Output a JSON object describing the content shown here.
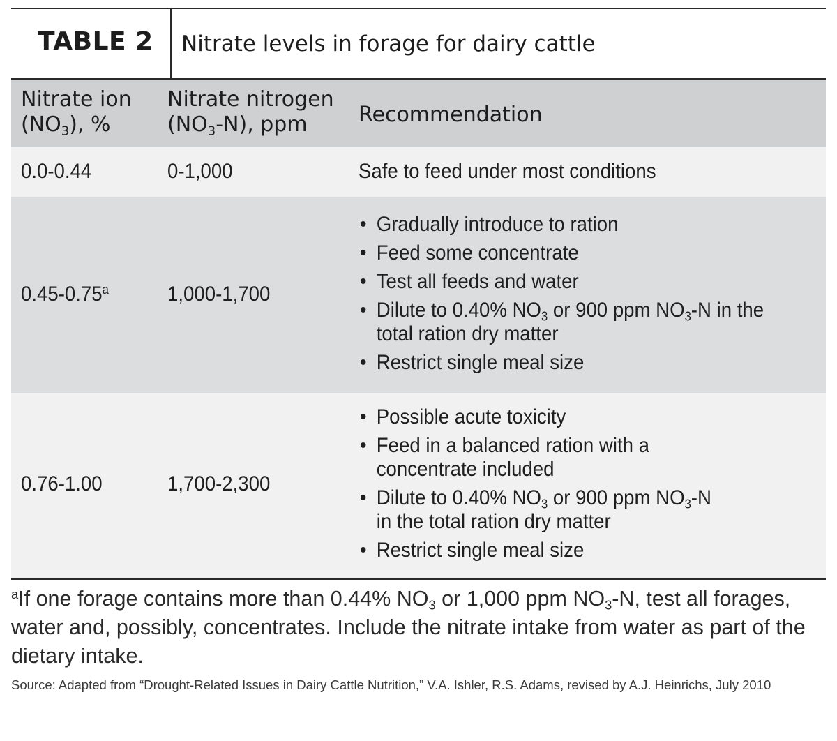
{
  "title": {
    "label": "TABLE 2",
    "text": "Nitrate levels in forage for dairy cattle"
  },
  "header": {
    "col1_line1": "Nitrate ion",
    "col1_line2_a": "(NO",
    "col1_line2_sub": "3",
    "col1_line2_b": "), %",
    "col2_line1": "Nitrate nitrogen",
    "col2_line2_a": "(NO",
    "col2_line2_sub": "3",
    "col2_line2_b": "-N), ppm",
    "col3": "Recommendation"
  },
  "rows": [
    {
      "nitrate_ion": "0.0-0.44",
      "nitrate_nitrogen": "0-1,000",
      "recommendation": "Safe to feed under most conditions"
    },
    {
      "nitrate_ion": "0.45-0.75",
      "nitrate_ion_sup": "a",
      "nitrate_nitrogen": "1,000-1,700",
      "b1": "Gradually introduce to ration",
      "b2": "Feed some concentrate",
      "b3": "Test all feeds and water",
      "b4_a": "Dilute to 0.40% NO",
      "b4_sub1": "3",
      "b4_b": " or 900 ppm NO",
      "b4_sub2": "3",
      "b4_c": "-N in the",
      "b4_d": "total ration dry matter",
      "b5": "Restrict single meal size"
    },
    {
      "nitrate_ion": "0.76-1.00",
      "nitrate_nitrogen": "1,700-2,300",
      "b1": "Possible acute toxicity",
      "b2_a": "Feed in a balanced ration with a",
      "b2_b": "concentrate included",
      "b3_a": "Dilute to 0.40% NO",
      "b3_sub1": "3",
      "b3_b": " or 900 ppm NO",
      "b3_sub2": "3",
      "b3_c": "-N",
      "b3_d": "in the total ration dry matter",
      "b4": "Restrict single meal size"
    }
  ],
  "footnote": {
    "marker": "a",
    "text_a": "If one forage contains more than 0.44% NO",
    "sub1": "3",
    "text_b": " or 1,000 ppm NO",
    "sub2": "3",
    "text_c": "-N, test all forages, water and, possibly, concentrates. Include the nitrate intake from water as part of the dietary intake."
  },
  "source": "Source: Adapted from “Drought-Related Issues in Dairy Cattle Nutrition,” V.A. Ishler, R.S. Adams, revised by A.J. Heinrichs, July 2010"
}
